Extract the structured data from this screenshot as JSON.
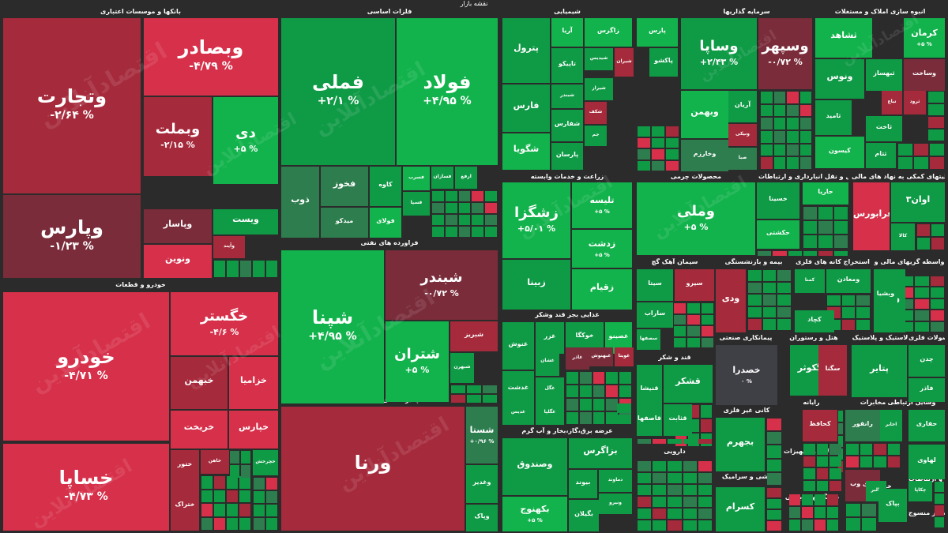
{
  "header": {
    "title": "نقشه بازار"
  },
  "colors": {
    "up_max": "#12b34c",
    "up_mid": "#0f9a46",
    "up_low": "#2e7d4f",
    "flat": "#3f3f46",
    "down_low": "#7a2c3a",
    "down_mid": "#a52a3b",
    "down_max": "#d6304a",
    "background": "#2b2b2b"
  },
  "watermark": "اقتصادآنلاین",
  "chart_data": {
    "type": "treemap",
    "sectors": [
      "بانکها و موسسات اعتباری",
      "فلزات اساسی",
      "شیمیایی",
      "سرمایه گذاریها",
      "انبوه سازی املاک و مستغلات",
      "زراعت و خدمات وابسته",
      "محصولات چرمی",
      "فعالیتهای کمکی به نهاد های مالی",
      "حمل و نقل انبارداری و ارتباطات",
      "فراورده های نفتی",
      "سیمان آهک گچ",
      "بیمه و بازنشستگی",
      "استخراج کانه های فلزی",
      "واسطه گریهای مالی و",
      "غذایی بجز قند وشکر",
      "هتل و رستوران",
      "لاستیک و پلاستیک",
      "محصولات فلزی",
      "پیمانکاری صنعتی",
      "قند و شکر",
      "خودرو و قطعات",
      "چندرشته ای صنعتی",
      "عرضه برق،گاز،بخار و آب گرم",
      "دارویی",
      "کانی غیر فلزی",
      "رایانه",
      "مخابرات",
      "وسایل ارتباطی",
      "کاشی و سرامیک",
      "ماشین آلات و تجهیزات",
      "استخراج نفت",
      "دستگاههای برقی",
      "خرده فروشی",
      "اطلاعات و ارتباطات",
      "سایر منسوج"
    ],
    "stocks": [
      {
        "symbol": "وتجارت",
        "change_pct": "-۲/۶۴ %",
        "change": -2.64,
        "sector": "بانکها و موسسات اعتباری"
      },
      {
        "symbol": "وبصادر",
        "change_pct": "-۴/۷۹ %",
        "change": -4.79,
        "sector": "بانکها و موسسات اعتباری"
      },
      {
        "symbol": "وبملت",
        "change_pct": "-۲/۱۵ %",
        "change": -2.15,
        "sector": "بانکها و موسسات اعتباری"
      },
      {
        "symbol": "دی",
        "change_pct": "+۵ %",
        "change": 5,
        "sector": "بانکها و موسسات اعتباری"
      },
      {
        "symbol": "وپارس",
        "change_pct": "-۱/۲۳ %",
        "change": -1.23,
        "sector": "بانکها و موسسات اعتباری"
      },
      {
        "symbol": "وپاسار",
        "change_pct": "",
        "change": -0.8,
        "sector": "بانکها و موسسات اعتباری"
      },
      {
        "symbol": "ونوین",
        "change_pct": "",
        "change": -3.5,
        "sector": "بانکها و موسسات اعتباری"
      },
      {
        "symbol": "ویست",
        "change_pct": "",
        "change": 3.2,
        "sector": "بانکها و موسسات اعتباری"
      },
      {
        "symbol": "وآیند",
        "change_pct": "",
        "change": -2.5,
        "sector": "بانکها و موسسات اعتباری"
      },
      {
        "symbol": "فملی",
        "change_pct": "+۲/۱ %",
        "change": 2.1,
        "sector": "فلزات اساسی"
      },
      {
        "symbol": "فولاد",
        "change_pct": "+۴/۹۵ %",
        "change": 4.95,
        "sector": "فلزات اساسی"
      },
      {
        "symbol": "فخوز",
        "change_pct": "",
        "change": 1.0,
        "sector": "فلزات اساسی"
      },
      {
        "symbol": "کاوه",
        "change_pct": "",
        "change": 3.0,
        "sector": "فلزات اساسی"
      },
      {
        "symbol": "فسرب",
        "change_pct": "",
        "change": 4.0,
        "sector": "فلزات اساسی"
      },
      {
        "symbol": "فسازان",
        "change_pct": "",
        "change": 2.0,
        "sector": "فلزات اساسی"
      },
      {
        "symbol": "ارفع",
        "change_pct": "",
        "change": 2.5,
        "sector": "فلزات اساسی"
      },
      {
        "symbol": "ذوب",
        "change_pct": "",
        "change": 1.5,
        "sector": "فلزات اساسی"
      },
      {
        "symbol": "میدکو",
        "change_pct": "",
        "change": 0.5,
        "sector": "فلزات اساسی"
      },
      {
        "symbol": "فولای",
        "change_pct": "",
        "change": 4.0,
        "sector": "فلزات اساسی"
      },
      {
        "symbol": "فسپا",
        "change_pct": "",
        "change": 3.0,
        "sector": "فلزات اساسی"
      },
      {
        "symbol": "پترول",
        "change_pct": "",
        "change": 3.5,
        "sector": "شیمیایی"
      },
      {
        "symbol": "آریا",
        "change_pct": "",
        "change": 4.0,
        "sector": "شیمیایی"
      },
      {
        "symbol": "زاگرس",
        "change_pct": "",
        "change": 4.5,
        "sector": "شیمیایی"
      },
      {
        "symbol": "پارس",
        "change_pct": "",
        "change": 4.0,
        "sector": "شیمیایی"
      },
      {
        "symbol": "تاپیکو",
        "change_pct": "",
        "change": 3.0,
        "sector": "شیمیایی"
      },
      {
        "symbol": "شیدیس",
        "change_pct": "",
        "change": 2.0,
        "sector": "شیمیایی"
      },
      {
        "symbol": "شیران",
        "change_pct": "",
        "change": -2.0,
        "sector": "شیمیایی"
      },
      {
        "symbol": "پاکشو",
        "change_pct": "",
        "change": 2.5,
        "sector": "شیمیایی"
      },
      {
        "symbol": "فارس",
        "change_pct": "",
        "change": 3.5,
        "sector": "شیمیایی"
      },
      {
        "symbol": "شبندر",
        "change_pct": "",
        "change": 2.0,
        "sector": "شیمیایی"
      },
      {
        "symbol": "شیراز",
        "change_pct": "",
        "change": 3.0,
        "sector": "شیمیایی"
      },
      {
        "symbol": "شکف",
        "change_pct": "",
        "change": -3.0,
        "sector": "شیمیایی"
      },
      {
        "symbol": "شفارس",
        "change_pct": "",
        "change": 2.5,
        "sector": "شیمیایی"
      },
      {
        "symbol": "جم",
        "change_pct": "",
        "change": 2.0,
        "sector": "شیمیایی"
      },
      {
        "symbol": "شگویا",
        "change_pct": "",
        "change": 4.0,
        "sector": "شیمیایی"
      },
      {
        "symbol": "پارسان",
        "change_pct": "",
        "change": 2.5,
        "sector": "شیمیایی"
      },
      {
        "symbol": "وساپا",
        "change_pct": "+۲/۴۳ %",
        "change": 2.43,
        "sector": "سرمایه گذاریها"
      },
      {
        "symbol": "وسپهر",
        "change_pct": "-۰/۷۲ %",
        "change": -0.72,
        "sector": "سرمایه گذاریها"
      },
      {
        "symbol": "وبهمن",
        "change_pct": "",
        "change": 4.0,
        "sector": "سرمایه گذاریها"
      },
      {
        "symbol": "آریان",
        "change_pct": "",
        "change": 2.0,
        "sector": "سرمایه گذاریها"
      },
      {
        "symbol": "ونیکی",
        "change_pct": "",
        "change": -2.0,
        "sector": "سرمایه گذاریها"
      },
      {
        "symbol": "وخارزم",
        "change_pct": "",
        "change": 1.5,
        "sector": "سرمایه گذاریها"
      },
      {
        "symbol": "صبا",
        "change_pct": "",
        "change": 1.0,
        "sector": "سرمایه گذاریها"
      },
      {
        "symbol": "ثشاهد",
        "change_pct": "",
        "change": 4.0,
        "sector": "انبوه سازی املاک و مستغلات"
      },
      {
        "symbol": "کرمان",
        "change_pct": "+۵ %",
        "change": 5,
        "sector": "انبوه سازی املاک و مستغلات"
      },
      {
        "symbol": "ونوس",
        "change_pct": "",
        "change": 3.0,
        "sector": "انبوه سازی املاک و مستغلات"
      },
      {
        "symbol": "ثبهساز",
        "change_pct": "",
        "change": 3.5,
        "sector": "انبوه سازی املاک و مستغلات"
      },
      {
        "symbol": "وساخت",
        "change_pct": "",
        "change": -0.5,
        "sector": "انبوه سازی املاک و مستغلات"
      },
      {
        "symbol": "ثامید",
        "change_pct": "",
        "change": 3.0,
        "sector": "انبوه سازی املاک و مستغلات"
      },
      {
        "symbol": "تباع",
        "change_pct": "",
        "change": -2.0,
        "sector": "انبوه سازی املاک و مستغلات"
      },
      {
        "symbol": "ثرود",
        "change_pct": "",
        "change": -2.5,
        "sector": "انبوه سازی املاک و مستغلات"
      },
      {
        "symbol": "ثاخت",
        "change_pct": "",
        "change": 3.5,
        "sector": "انبوه سازی املاک و مستغلات"
      },
      {
        "symbol": "کیسون",
        "change_pct": "",
        "change": 4.0,
        "sector": "انبوه سازی املاک و مستغلات"
      },
      {
        "symbol": "ثتام",
        "change_pct": "",
        "change": 3.0,
        "sector": "انبوه سازی املاک و مستغلات"
      },
      {
        "symbol": "زشگزا",
        "change_pct": "+۵/۰۱ %",
        "change": 5.01,
        "sector": "زراعت و خدمات وابسته"
      },
      {
        "symbol": "تلیسه",
        "change_pct": "+۵ %",
        "change": 5,
        "sector": "زراعت و خدمات وابسته"
      },
      {
        "symbol": "زدشت",
        "change_pct": "+۵ %",
        "change": 5,
        "sector": "زراعت و خدمات وابسته"
      },
      {
        "symbol": "زبینا",
        "change_pct": "",
        "change": 2.5,
        "sector": "زراعت و خدمات وابسته"
      },
      {
        "symbol": "زقیام",
        "change_pct": "",
        "change": 4.0,
        "sector": "زراعت و خدمات وابسته"
      },
      {
        "symbol": "وملی",
        "change_pct": "+۵ %",
        "change": 5,
        "sector": "محصولات چرمی"
      },
      {
        "symbol": "خسینا",
        "change_pct": "",
        "change": 3.5,
        "sector": "حمل و نقل انبارداری و ارتباطات"
      },
      {
        "symbol": "حکشتی",
        "change_pct": "",
        "change": 4.0,
        "sector": "حمل و نقل انبارداری و ارتباطات"
      },
      {
        "symbol": "حاریا",
        "change_pct": "",
        "change": 4.0,
        "sector": "حمل و نقل انبارداری و ارتباطات"
      },
      {
        "symbol": "اوان۳",
        "change_pct": "",
        "change": 3.5,
        "sector": "فعالیتهای کمکی به نهاد های مالی"
      },
      {
        "symbol": "فرابورس",
        "change_pct": "",
        "change": -4.5,
        "sector": "فعالیتهای کمکی به نهاد های مالی"
      },
      {
        "symbol": "کالا",
        "change_pct": "",
        "change": 3.0,
        "sector": "فعالیتهای کمکی به نهاد های مالی"
      },
      {
        "symbol": "شپنا",
        "change_pct": "+۴/۹۵ %",
        "change": 4.95,
        "sector": "فراورده های نفتی"
      },
      {
        "symbol": "شبندر",
        "change_pct": "-۰/۷۲ %",
        "change": -0.72,
        "sector": "فراورده های نفتی"
      },
      {
        "symbol": "شتران",
        "change_pct": "+۵ %",
        "change": 5,
        "sector": "فراورده های نفتی"
      },
      {
        "symbol": "شبریز",
        "change_pct": "",
        "change": -3.0,
        "sector": "فراورده های نفتی"
      },
      {
        "symbol": "شبهرن",
        "change_pct": "",
        "change": 2.0,
        "sector": "فراورده های نفتی"
      },
      {
        "symbol": "سیتا",
        "change_pct": "",
        "change": 3.5,
        "sector": "سیمان آهک گچ"
      },
      {
        "symbol": "سیرو",
        "change_pct": "",
        "change": -3.0,
        "sector": "سیمان آهک گچ"
      },
      {
        "symbol": "ساراب",
        "change_pct": "",
        "change": 2.0,
        "sector": "سیمان آهک گچ"
      },
      {
        "symbol": "سصفها",
        "change_pct": "",
        "change": 2.5,
        "sector": "سیمان آهک گچ"
      },
      {
        "symbol": "ودی",
        "change_pct": "",
        "change": -2.5,
        "sector": "بیمه و بازنشستگی"
      },
      {
        "symbol": "کمنا",
        "change_pct": "",
        "change": 3.0,
        "sector": "استخراج کانه های فلزی"
      },
      {
        "symbol": "ومعادن",
        "change_pct": "",
        "change": 2.5,
        "sector": "استخراج کانه های فلزی"
      },
      {
        "symbol": "کچاد",
        "change_pct": "",
        "change": 2.0,
        "sector": "استخراج کانه های فلزی"
      },
      {
        "symbol": "وپسا",
        "change_pct": "",
        "change": 3.0,
        "sector": "واسطه گریهای مالی و"
      },
      {
        "symbol": "وبشیا",
        "change_pct": "",
        "change": 3.5,
        "sector": "واسطه گریهای مالی و"
      },
      {
        "symbol": "غنوش",
        "change_pct": "",
        "change": 2.5,
        "sector": "غذایی بجز قند وشکر"
      },
      {
        "symbol": "غزر",
        "change_pct": "",
        "change": 2.0,
        "sector": "غذایی بجز قند وشکر"
      },
      {
        "symbol": "خوکگا",
        "change_pct": "",
        "change": 3.0,
        "sector": "غذایی بجز قند وشکر"
      },
      {
        "symbol": "غصینو",
        "change_pct": "",
        "change": 4.0,
        "sector": "غذایی بجز قند وشکر"
      },
      {
        "symbol": "غگل",
        "change_pct": "",
        "change": 3.0,
        "sector": "غذایی بجز قند وشکر"
      },
      {
        "symbol": "غگلپا",
        "change_pct": "",
        "change": 2.0,
        "sector": "غذایی بجز قند وشکر"
      },
      {
        "symbol": "غبهنوش",
        "change_pct": "",
        "change": -1.5,
        "sector": "غذایی بجز قند وشکر"
      },
      {
        "symbol": "غویتا",
        "change_pct": "",
        "change": -3.0,
        "sector": "غذایی بجز قند وشکر"
      },
      {
        "symbol": "غدشت",
        "change_pct": "",
        "change": 2.5,
        "sector": "غذایی بجز قند وشکر"
      },
      {
        "symbol": "غشان",
        "change_pct": "",
        "change": 2.5,
        "sector": "غذایی بجز قند وشکر"
      },
      {
        "symbol": "غدیس",
        "change_pct": "",
        "change": 3.0,
        "sector": "غذایی بجز قند وشکر"
      },
      {
        "symbol": "غاذر",
        "change_pct": "",
        "change": -1.0,
        "sector": "غذایی بجز قند وشکر"
      },
      {
        "symbol": "خصدرا",
        "change_pct": "۰ %",
        "change": 0,
        "sector": "پیمانکاری صنعتی"
      },
      {
        "symbol": "گکوثر",
        "change_pct": "",
        "change": 3.0,
        "sector": "هتل و رستوران"
      },
      {
        "symbol": "سگنا",
        "change_pct": "",
        "change": -2.5,
        "sector": "هتل و رستوران"
      },
      {
        "symbol": "پتایر",
        "change_pct": "",
        "change": 3.0,
        "sector": "لاستیک و پلاستیک"
      },
      {
        "symbol": "چدن",
        "change_pct": "",
        "change": 3.0,
        "sector": "محصولات فلزی"
      },
      {
        "symbol": "فاذر",
        "change_pct": "",
        "change": 2.0,
        "sector": "محصولات فلزی"
      },
      {
        "symbol": "قشکر",
        "change_pct": "",
        "change": 3.5,
        "sector": "قند و شکر"
      },
      {
        "symbol": "قنیشا",
        "change_pct": "",
        "change": 3.0,
        "sector": "قند و شکر"
      },
      {
        "symbol": "قثابت",
        "change_pct": "",
        "change": 2.5,
        "sector": "قند و شکر"
      },
      {
        "symbol": "قاصفها",
        "change_pct": "",
        "change": 2.0,
        "sector": "قند و شکر"
      },
      {
        "symbol": "خودرو",
        "change_pct": "-۴/۷۱ %",
        "change": -4.71,
        "sector": "خودرو و قطعات"
      },
      {
        "symbol": "خگستر",
        "change_pct": "-۴/۶ %",
        "change": -4.6,
        "sector": "خودرو و قطعات"
      },
      {
        "symbol": "خبهمن",
        "change_pct": "",
        "change": -2.8,
        "sector": "خودرو و قطعات"
      },
      {
        "symbol": "خزامیا",
        "change_pct": "",
        "change": -4.0,
        "sector": "خودرو و قطعات"
      },
      {
        "symbol": "خساپا",
        "change_pct": "-۴/۷۳ %",
        "change": -4.73,
        "sector": "خودرو و قطعات"
      },
      {
        "symbol": "خریخت",
        "change_pct": "",
        "change": -4.0,
        "sector": "خودرو و قطعات"
      },
      {
        "symbol": "خپارس",
        "change_pct": "",
        "change": -4.0,
        "sector": "خودرو و قطعات"
      },
      {
        "symbol": "ختراک",
        "change_pct": "",
        "change": -3.0,
        "sector": "خودرو و قطعات"
      },
      {
        "symbol": "خاهن",
        "change_pct": "",
        "change": -3.0,
        "sector": "خودرو و قطعات"
      },
      {
        "symbol": "خچرخش",
        "change_pct": "",
        "change": 3.0,
        "sector": "خودرو و قطعات"
      },
      {
        "symbol": "ختور",
        "change_pct": "",
        "change": -3.0,
        "sector": "خودرو و قطعات"
      },
      {
        "symbol": "ورنا",
        "change_pct": "",
        "change": -3.0,
        "sector": "خودرو و قطعات"
      },
      {
        "symbol": "شستا",
        "change_pct": "+۰/۹۶ %",
        "change": 0.96,
        "sector": "چندرشته ای صنعتی"
      },
      {
        "symbol": "وغدیر",
        "change_pct": "",
        "change": 3.0,
        "sector": "چندرشته ای صنعتی"
      },
      {
        "symbol": "وپاک",
        "change_pct": "",
        "change": 3.0,
        "sector": "چندرشته ای صنعتی"
      },
      {
        "symbول": "",
        "change_pct": "",
        "change": 2.0,
        "sector": "چندرشته ای صنعتی"
      },
      {
        "symbol": "وصندوق",
        "change_pct": "",
        "change": 2.0,
        "sector": "چندرشته ای صنعتی"
      },
      {
        "symbol": "بکهنوج",
        "change_pct": "+۵ %",
        "change": 5,
        "sector": "عرضه برق،گاز،بخار و آب گرم"
      },
      {
        "symbol": "بزاگرس",
        "change_pct": "",
        "change": 3.0,
        "sector": "عرضه برق،گاز،بخار و آب گرم"
      },
      {
        "symbol": "بیوند",
        "change_pct": "",
        "change": 3.0,
        "sector": "عرضه برق،گاز،بخار و آب گرم"
      },
      {
        "symbol": "دماوند",
        "change_pct": "",
        "change": 2.0,
        "sector": "عرضه برق،گاز،بخار و آب گرم"
      },
      {
        "symbol": "ونیرو",
        "change_pct": "",
        "change": 2.5,
        "sector": "عرضه برق،گاز،بخار و آب گرم"
      },
      {
        "symbol": "بگیلان",
        "change_pct": "",
        "change": 3.0,
        "sector": "عرضه برق،گاز،بخار و آب گرم"
      },
      {
        "symbol": "بجهرم",
        "change_pct": "",
        "change": 2.5,
        "sector": "عرضه برق،گاز،بخار و آب گرم"
      },
      {
        "symbol": "کسرام",
        "change_pct": "",
        "change": 3.5,
        "sector": "کانی غیر فلزی"
      },
      {
        "symbol": "کحافظ",
        "change_pct": "",
        "change": -3.0,
        "sector": "کاشی و سرامیک"
      },
      {
        "symbol": "رانفور",
        "change_pct": "",
        "change": 1.0,
        "sector": "رایانه"
      },
      {
        "symbol": "اخابر",
        "change_pct": "",
        "change": 3.0,
        "sector": "مخابرات"
      },
      {
        "symbol": "های وب",
        "change_pct": "",
        "change": -0.5,
        "sector": "مخابرات"
      },
      {
        "symbol": "حفاری",
        "change_pct": "",
        "change": 3.0,
        "sector": "استخراج نفت"
      },
      {
        "symbol": "لهاوی",
        "change_pct": "",
        "change": 3.0,
        "sector": "وسایل ارتباطی"
      },
      {
        "symbol": "چکاپا",
        "change_pct": "",
        "change": 3.0,
        "sector": "دستگاههای برقی"
      },
      {
        "symbol": "بالبر",
        "change_pct": "",
        "change": 2.5,
        "sector": "دستگاههای برقی"
      },
      {
        "symbol": "بپاک",
        "change_pct": "",
        "change": 2.5,
        "sector": "دستگاههای برقی"
      },
      {
        "symbol": "افق",
        "change_pct": "",
        "change": 3.0,
        "sector": "خرده فروشی"
      }
    ]
  },
  "extra_labels": {
    "sector_header_mahsulat": "محصولات",
    "sector_header_chap": "چاپ",
    "sector_header_estekhr": "استخر",
    "sector_header_noon": "و ..."
  }
}
